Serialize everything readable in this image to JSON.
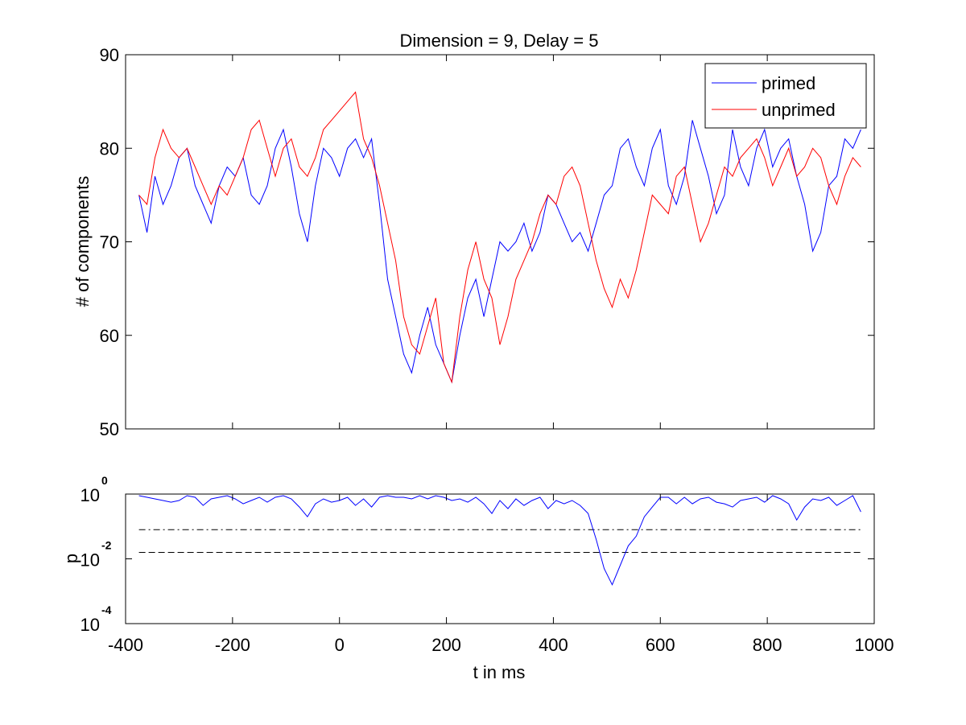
{
  "chart_data": [
    {
      "type": "line",
      "title": "Dimension  = 9, Delay = 5",
      "xlabel": "",
      "ylabel": "# of components",
      "xlim": [
        -400,
        1000
      ],
      "ylim": [
        50,
        90
      ],
      "y_ticks": [
        50,
        60,
        70,
        80,
        90
      ],
      "x_ticks": [
        -400,
        -200,
        0,
        200,
        400,
        600,
        800,
        1000
      ],
      "show_x_tick_labels": false,
      "grid": false,
      "legend_position": "top-right",
      "series": [
        {
          "name": "primed",
          "color": "#0000ff",
          "x": [
            -375,
            -360,
            -345,
            -330,
            -315,
            -300,
            -285,
            -270,
            -255,
            -240,
            -225,
            -210,
            -195,
            -180,
            -165,
            -150,
            -135,
            -120,
            -105,
            -90,
            -75,
            -60,
            -45,
            -30,
            -15,
            0,
            15,
            30,
            45,
            60,
            75,
            90,
            105,
            120,
            135,
            150,
            165,
            180,
            195,
            210,
            225,
            240,
            255,
            270,
            285,
            300,
            315,
            330,
            345,
            360,
            375,
            390,
            405,
            420,
            435,
            450,
            465,
            480,
            495,
            510,
            525,
            540,
            555,
            570,
            585,
            600,
            615,
            630,
            645,
            660,
            675,
            690,
            705,
            720,
            735,
            750,
            765,
            780,
            795,
            810,
            825,
            840,
            855,
            870,
            885,
            900,
            915,
            930,
            945,
            960,
            975
          ],
          "y": [
            75,
            71,
            77,
            74,
            76,
            79,
            80,
            76,
            74,
            72,
            76,
            78,
            77,
            79,
            75,
            74,
            76,
            80,
            82,
            78,
            73,
            70,
            76,
            80,
            79,
            77,
            80,
            81,
            79,
            81,
            74,
            66,
            62,
            58,
            56,
            60,
            63,
            59,
            57,
            55,
            60,
            64,
            66,
            62,
            66,
            70,
            69,
            70,
            72,
            69,
            71,
            75,
            74,
            72,
            70,
            71,
            69,
            72,
            75,
            76,
            80,
            81,
            78,
            76,
            80,
            82,
            76,
            74,
            77,
            83,
            80,
            77,
            73,
            75,
            82,
            78,
            76,
            80,
            82,
            78,
            80,
            81,
            77,
            74,
            69,
            71,
            76,
            77,
            81,
            80,
            82
          ]
        },
        {
          "name": "unprimed",
          "color": "#ff0000",
          "x": [
            -375,
            -360,
            -345,
            -330,
            -315,
            -300,
            -285,
            -270,
            -255,
            -240,
            -225,
            -210,
            -195,
            -180,
            -165,
            -150,
            -135,
            -120,
            -105,
            -90,
            -75,
            -60,
            -45,
            -30,
            -15,
            0,
            15,
            30,
            45,
            60,
            75,
            90,
            105,
            120,
            135,
            150,
            165,
            180,
            195,
            210,
            225,
            240,
            255,
            270,
            285,
            300,
            315,
            330,
            345,
            360,
            375,
            390,
            405,
            420,
            435,
            450,
            465,
            480,
            495,
            510,
            525,
            540,
            555,
            570,
            585,
            600,
            615,
            630,
            645,
            660,
            675,
            690,
            705,
            720,
            735,
            750,
            765,
            780,
            795,
            810,
            825,
            840,
            855,
            870,
            885,
            900,
            915,
            930,
            945,
            960,
            975
          ],
          "y": [
            75,
            74,
            79,
            82,
            80,
            79,
            80,
            78,
            76,
            74,
            76,
            75,
            77,
            79,
            82,
            83,
            80,
            77,
            80,
            81,
            78,
            77,
            79,
            82,
            83,
            84,
            85,
            86,
            81,
            79,
            76,
            72,
            68,
            62,
            59,
            58,
            61,
            64,
            57,
            55,
            62,
            67,
            70,
            66,
            64,
            59,
            62,
            66,
            68,
            70,
            73,
            75,
            74,
            77,
            78,
            76,
            72,
            68,
            65,
            63,
            66,
            64,
            67,
            71,
            75,
            74,
            73,
            77,
            78,
            74,
            70,
            72,
            75,
            78,
            77,
            79,
            80,
            81,
            79,
            76,
            78,
            80,
            77,
            78,
            80,
            79,
            76,
            74,
            77,
            79,
            78
          ]
        }
      ]
    },
    {
      "type": "line",
      "title": "",
      "xlabel": "t in ms",
      "ylabel": "p",
      "xlim": [
        -400,
        1000
      ],
      "ylim_log10": [
        -4,
        0
      ],
      "y_scale": "log",
      "x_ticks": [
        -400,
        -200,
        0,
        200,
        400,
        600,
        800,
        1000
      ],
      "y_tick_labels": [
        {
          "base": "10",
          "exp": "0",
          "log10": 0
        },
        {
          "base": "10",
          "exp": "-2",
          "log10": -2
        },
        {
          "base": "10",
          "exp": "-4",
          "log10": -4
        }
      ],
      "grid": false,
      "series": [
        {
          "name": "",
          "color": "#0000ff",
          "x": [
            -375,
            -360,
            -345,
            -330,
            -315,
            -300,
            -285,
            -270,
            -255,
            -240,
            -225,
            -210,
            -195,
            -180,
            -165,
            -150,
            -135,
            -120,
            -105,
            -90,
            -75,
            -60,
            -45,
            -30,
            -15,
            0,
            15,
            30,
            45,
            60,
            75,
            90,
            105,
            120,
            135,
            150,
            165,
            180,
            195,
            210,
            225,
            240,
            255,
            270,
            285,
            300,
            315,
            330,
            345,
            360,
            375,
            390,
            405,
            420,
            435,
            450,
            465,
            480,
            495,
            510,
            525,
            540,
            555,
            570,
            585,
            600,
            615,
            630,
            645,
            660,
            675,
            690,
            705,
            720,
            735,
            750,
            765,
            780,
            795,
            810,
            825,
            840,
            855,
            870,
            885,
            900,
            915,
            930,
            945,
            960,
            975
          ],
          "log10_p": [
            -0.05,
            -0.1,
            -0.15,
            -0.2,
            -0.25,
            -0.2,
            -0.05,
            -0.1,
            -0.35,
            -0.15,
            -0.1,
            -0.05,
            -0.15,
            -0.3,
            -0.2,
            -0.1,
            -0.25,
            -0.1,
            -0.05,
            -0.15,
            -0.4,
            -0.7,
            -0.3,
            -0.15,
            -0.25,
            -0.2,
            -0.1,
            -0.35,
            -0.15,
            -0.4,
            -0.1,
            -0.05,
            -0.1,
            -0.1,
            -0.15,
            -0.05,
            -0.15,
            -0.05,
            -0.1,
            -0.2,
            -0.15,
            -0.25,
            -0.1,
            -0.3,
            -0.6,
            -0.2,
            -0.45,
            -0.15,
            -0.35,
            -0.2,
            -0.1,
            -0.45,
            -0.2,
            -0.3,
            -0.2,
            -0.35,
            -0.6,
            -1.4,
            -2.3,
            -2.8,
            -2.2,
            -1.6,
            -1.3,
            -0.7,
            -0.4,
            -0.1,
            -0.1,
            -0.3,
            -0.1,
            -0.3,
            -0.15,
            -0.1,
            -0.25,
            -0.3,
            -0.4,
            -0.2,
            -0.15,
            -0.1,
            -0.25,
            -0.05,
            -0.15,
            -0.3,
            -0.8,
            -0.4,
            -0.15,
            -0.2,
            -0.1,
            -0.35,
            -0.2,
            -0.05,
            -0.55
          ]
        }
      ],
      "reference_lines": [
        {
          "log10": -1.1,
          "style": "dash-dot",
          "color": "#000000"
        },
        {
          "log10": -1.8,
          "style": "dashed",
          "color": "#000000"
        }
      ]
    }
  ]
}
